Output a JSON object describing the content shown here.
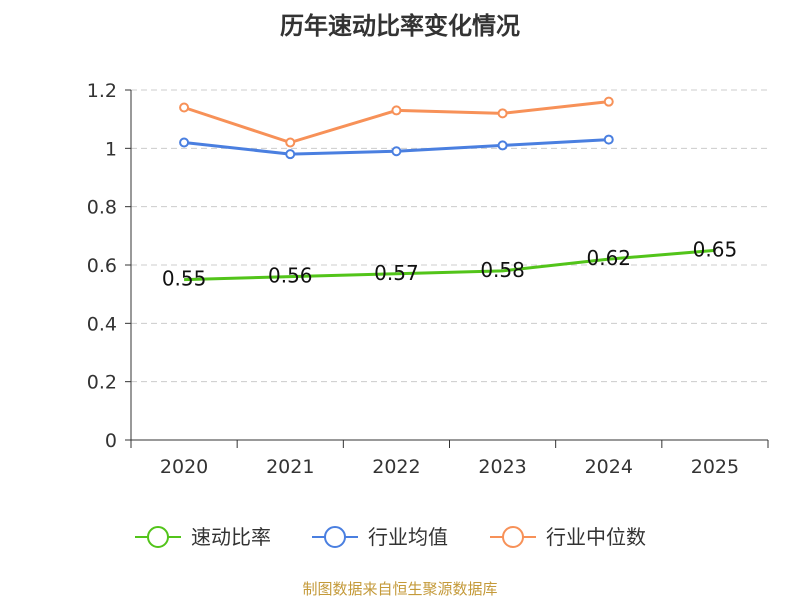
{
  "chart_data": {
    "type": "line",
    "title": "历年速动比率变化情况",
    "categories": [
      "2020",
      "2021",
      "2022",
      "2023",
      "2024",
      "2025"
    ],
    "ylim": [
      0,
      1.2
    ],
    "yticks": [
      "0",
      "0.2",
      "0.4",
      "0.6",
      "0.8",
      "1",
      "1.2"
    ],
    "grid": true,
    "legend_position": "bottom",
    "series": [
      {
        "name": "速动比率",
        "color": "#52c41a",
        "values": [
          0.55,
          0.56,
          0.57,
          0.58,
          0.62,
          0.65
        ],
        "labels": [
          "0.55",
          "0.56",
          "0.57",
          "0.58",
          "0.62",
          "0.65"
        ],
        "show_markers": false
      },
      {
        "name": "行业均值",
        "color": "#4a7fe0",
        "values": [
          1.02,
          0.98,
          0.99,
          1.01,
          1.03,
          null
        ],
        "show_markers": true
      },
      {
        "name": "行业中位数",
        "color": "#f79158",
        "values": [
          1.14,
          1.02,
          1.13,
          1.12,
          1.16,
          null
        ],
        "show_markers": true
      }
    ]
  },
  "source_text": "制图数据来自恒生聚源数据库"
}
